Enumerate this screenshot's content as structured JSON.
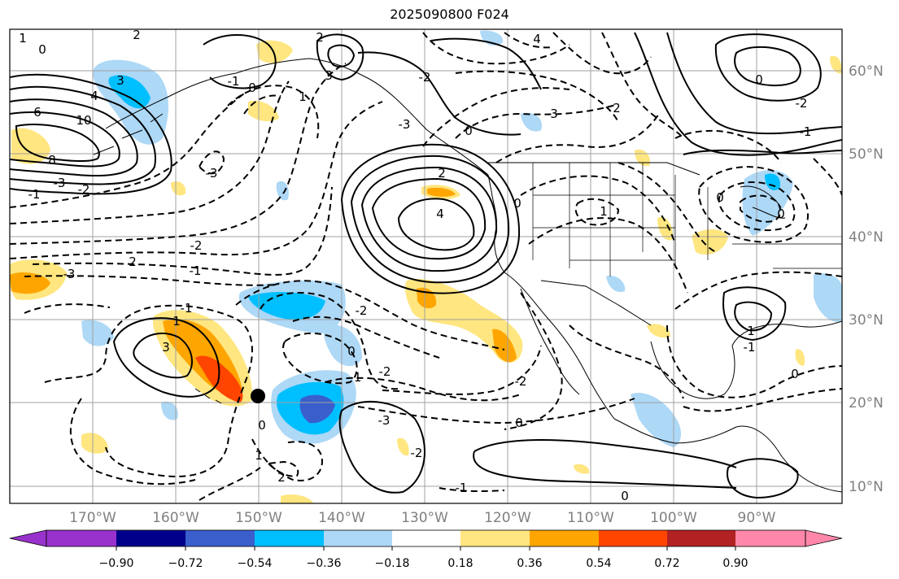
{
  "title": "2025090800 F024",
  "map": {
    "lat_labels": [
      "60°N",
      "50°N",
      "40°N",
      "30°N",
      "20°N",
      "10°N"
    ],
    "lon_labels": [
      "170°W",
      "160°W",
      "150°W",
      "140°W",
      "130°W",
      "120°W",
      "110°W",
      "100°W",
      "90°W"
    ],
    "contour_labels": [
      "1",
      "0",
      "2",
      "4",
      "3",
      "6",
      "10",
      "8",
      "-2",
      "-3",
      "-1",
      "2",
      "0",
      "-1",
      "3",
      "-3",
      "1",
      "4",
      "3",
      "2",
      "0",
      "-3",
      "-2",
      "2",
      "4",
      "-1",
      "0",
      "-2",
      "2",
      "-3",
      "-1",
      "1",
      "3",
      "-2",
      "0",
      "-2",
      "-1",
      "-3",
      "-2",
      "0",
      "1",
      "2",
      "0",
      "-1",
      "-2",
      "1",
      "0",
      "-2",
      "-1",
      "0",
      "0",
      "1",
      "-1",
      "0",
      "0"
    ]
  },
  "colorbar": {
    "colors": [
      "#9932cc",
      "#00008b",
      "#3a5fcd",
      "#00bfff",
      "#add8f6",
      "#ffffff",
      "#ffe680",
      "#ffa500",
      "#ff4500",
      "#b22222",
      "#ff88aa"
    ],
    "tick_labels": [
      "−0.90",
      "−0.72",
      "−0.54",
      "−0.36",
      "−0.18",
      "0.18",
      "0.36",
      "0.54",
      "0.72",
      "0.90"
    ]
  },
  "marker": {
    "lat": 21,
    "lon": "150°W"
  }
}
